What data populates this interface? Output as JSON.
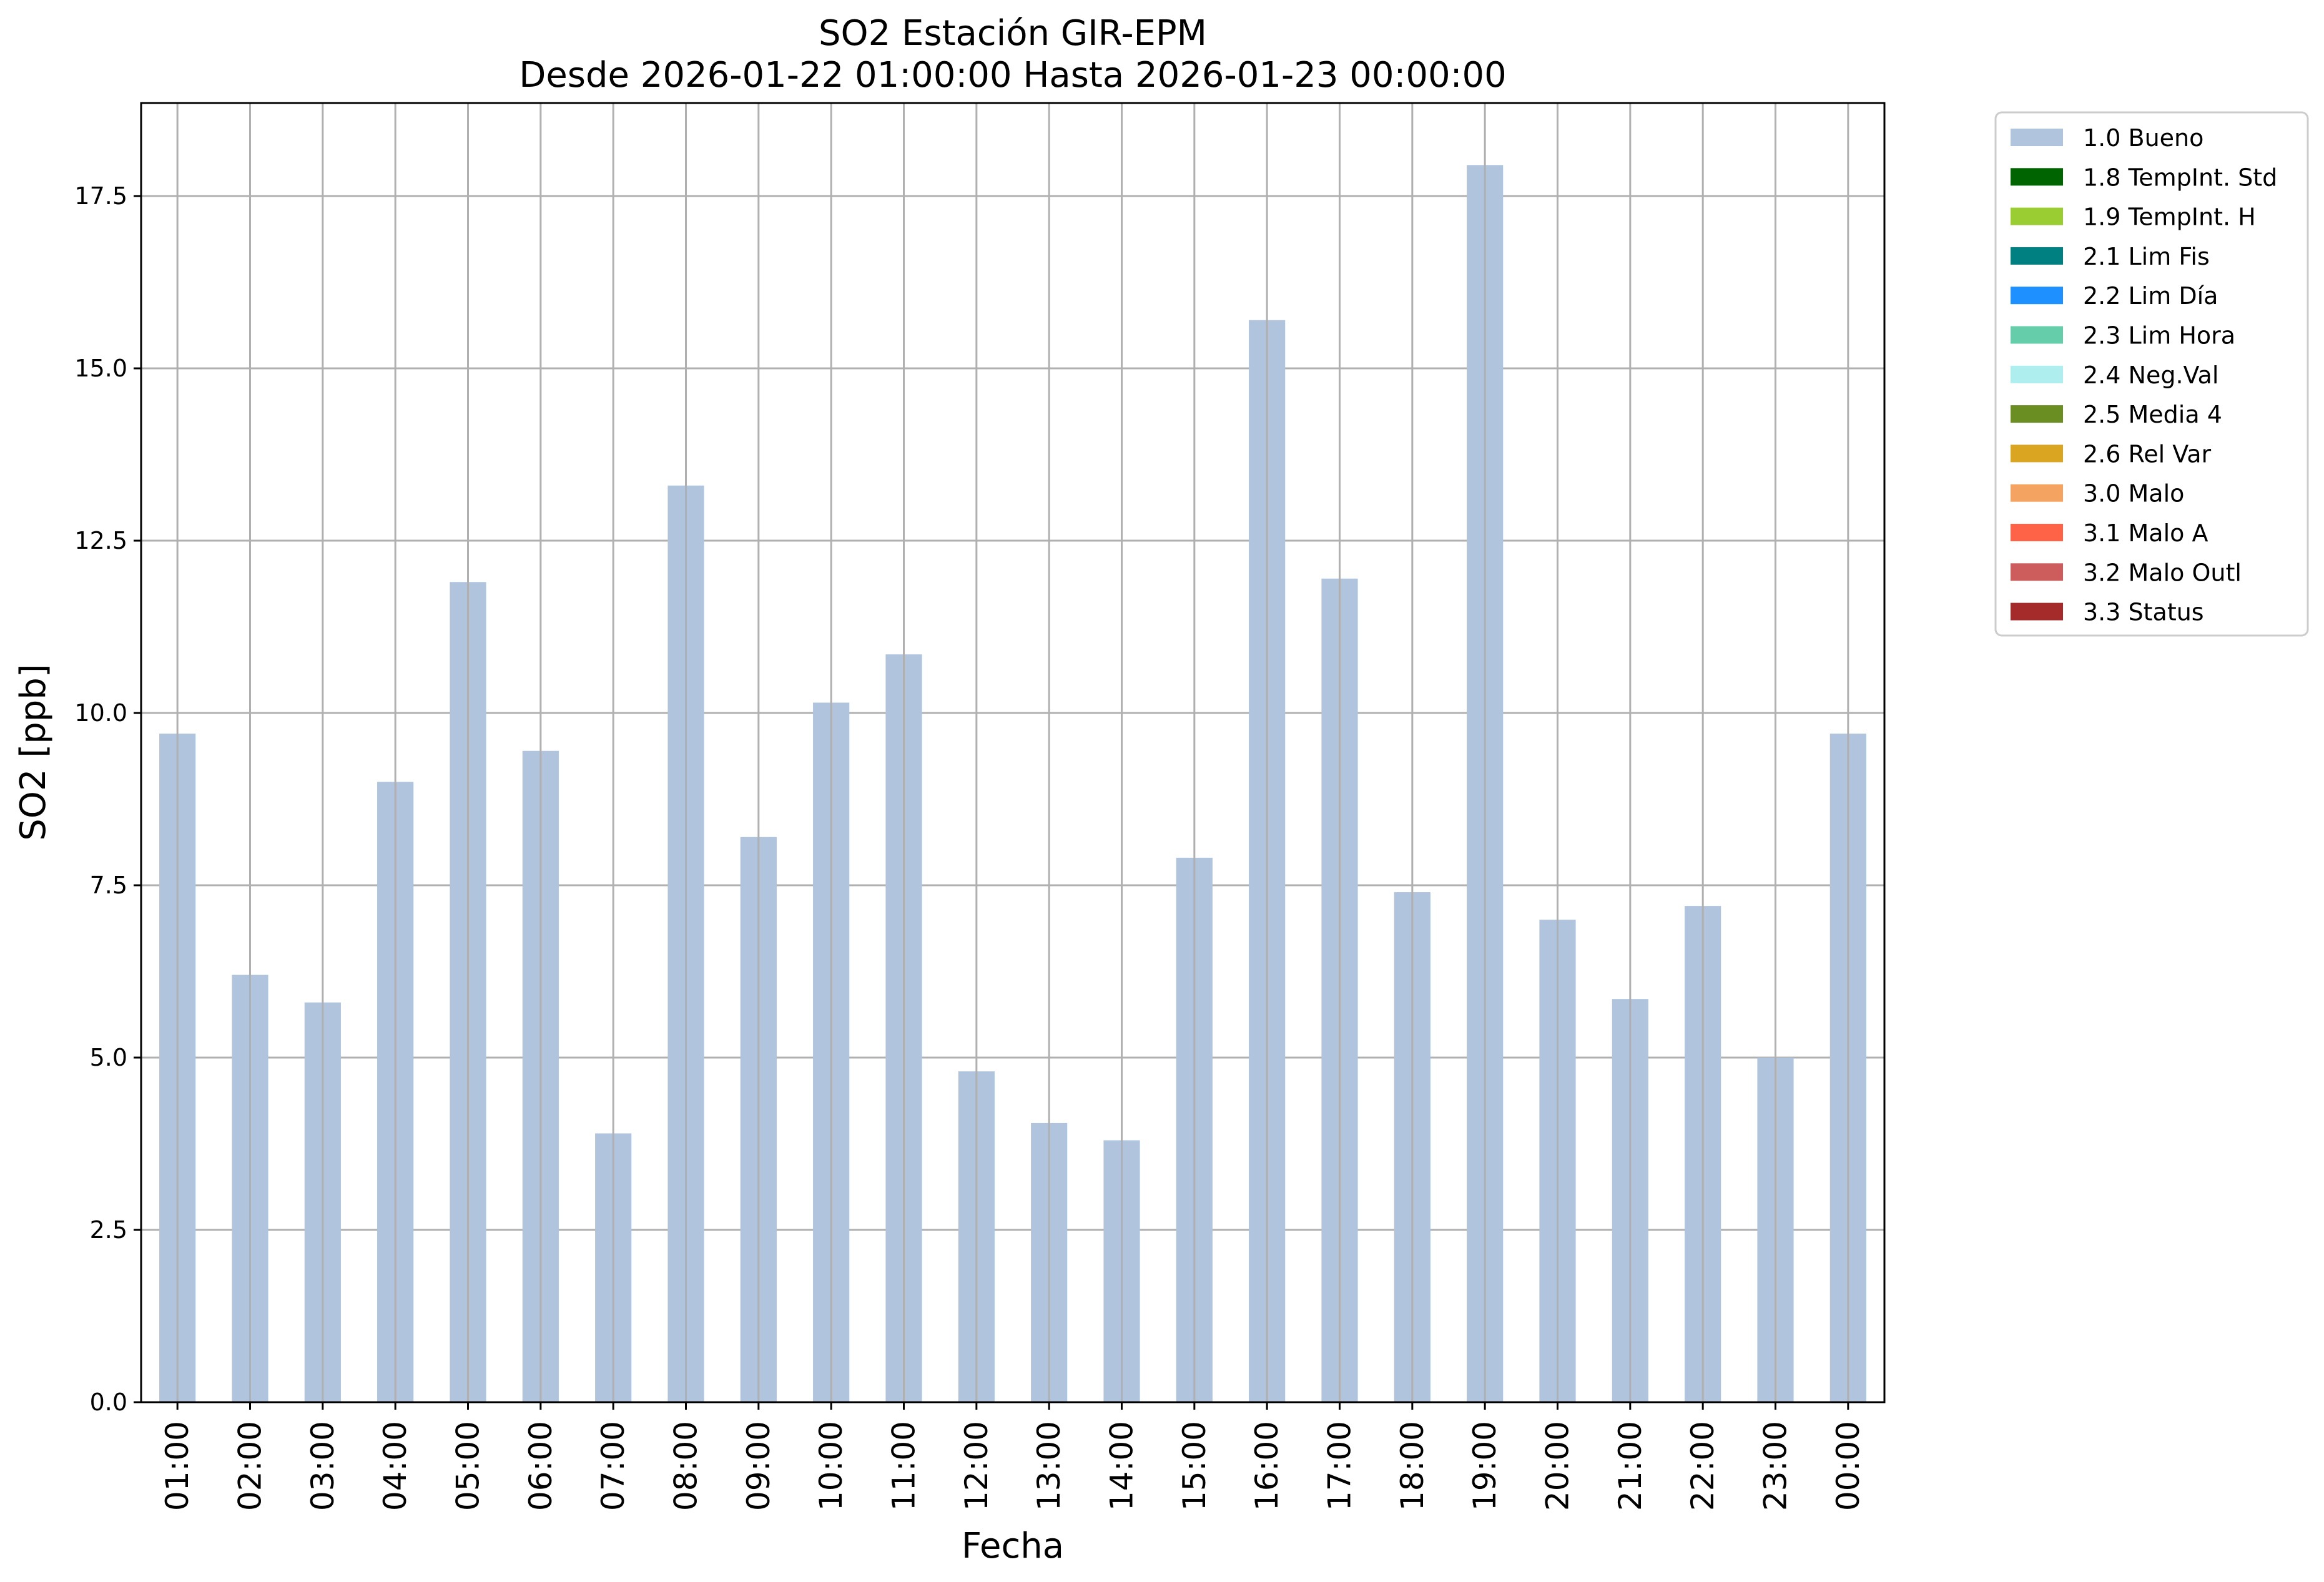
{
  "chart_data": {
    "type": "bar",
    "title": "SO2 Estación GIR-EPM",
    "subtitle": "Desde 2026-01-22 01:00:00 Hasta 2026-01-23 00:00:00",
    "xlabel": "Fecha",
    "ylabel": "SO2 [ppb]",
    "ylim": [
      0,
      18.85
    ],
    "yticks": [
      "0.0",
      "2.5",
      "5.0",
      "7.5",
      "10.0",
      "12.5",
      "15.0",
      "17.5"
    ],
    "grid": true,
    "legend_position": "outside-top-right",
    "categories": [
      "01:00",
      "02:00",
      "03:00",
      "04:00",
      "05:00",
      "06:00",
      "07:00",
      "08:00",
      "09:00",
      "10:00",
      "11:00",
      "12:00",
      "13:00",
      "14:00",
      "15:00",
      "16:00",
      "17:00",
      "18:00",
      "19:00",
      "20:00",
      "21:00",
      "22:00",
      "23:00",
      "00:00"
    ],
    "series": [
      {
        "name": "1.0 Bueno",
        "color": "#b0c4de",
        "values": [
          9.7,
          6.2,
          5.8,
          9.0,
          11.9,
          9.45,
          3.9,
          13.3,
          8.2,
          10.15,
          10.85,
          4.8,
          4.05,
          3.8,
          7.9,
          15.7,
          11.95,
          7.4,
          17.95,
          7.0,
          5.85,
          7.2,
          5.0,
          9.7
        ]
      }
    ],
    "legend": [
      {
        "label": "1.0 Bueno",
        "color": "#b0c4de"
      },
      {
        "label": "1.8 TempInt. Std",
        "color": "#006400"
      },
      {
        "label": "1.9 TempInt. H",
        "color": "#9acd32"
      },
      {
        "label": "2.1 Lim Fis",
        "color": "#008080"
      },
      {
        "label": "2.2 Lim Día",
        "color": "#1e90ff"
      },
      {
        "label": "2.3 Lim Hora",
        "color": "#66cdaa"
      },
      {
        "label": "2.4 Neg.Val",
        "color": "#afeeee"
      },
      {
        "label": "2.5 Media 4",
        "color": "#6b8e23"
      },
      {
        "label": "2.6 Rel Var",
        "color": "#daa520"
      },
      {
        "label": "3.0 Malo",
        "color": "#f4a460"
      },
      {
        "label": "3.1 Malo A",
        "color": "#ff6347"
      },
      {
        "label": "3.2 Malo Outl",
        "color": "#cd5c5c"
      },
      {
        "label": "3.3 Status",
        "color": "#a52a2a"
      }
    ]
  }
}
